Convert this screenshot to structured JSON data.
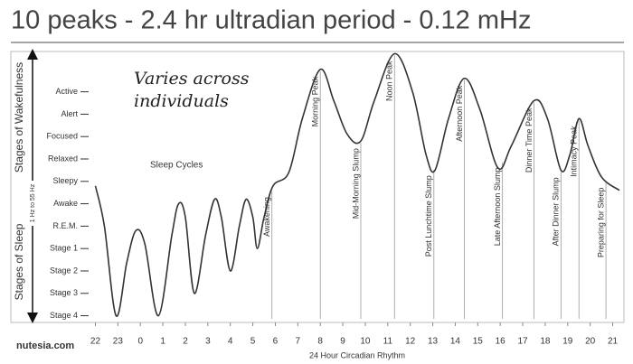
{
  "chart_data": {
    "type": "line",
    "title": "10 peaks - 2.4 hr ultradian period - 0.12 mHz",
    "note": [
      "Varies across",
      "individuals"
    ],
    "inner_label": "Sleep Cycles",
    "y_axis_labels": [
      "Stages of Wakefulness",
      "Stages of Sleep"
    ],
    "y_axis_sublabel": "1 Hz to 55 Hz",
    "xlabel": "24 Hour Circadian Rhythm",
    "source": "nutesia.com",
    "color": "#333333",
    "x": [
      0,
      0.4,
      0.92,
      1.4,
      1.8,
      2.2,
      2.8,
      3.4,
      3.7,
      4.0,
      4.4,
      4.9,
      5.3,
      5.6,
      6.0,
      6.4,
      6.7,
      7.0,
      7.2,
      7.5,
      7.9,
      8.6,
      9.2,
      10.0,
      10.6,
      11.2,
      11.8,
      12.4,
      13.3,
      14.1,
      14.7,
      15.1,
      15.7,
      16.4,
      17.1,
      17.9,
      18.5,
      19.5,
      20.1,
      20.7,
      21.1,
      21.5,
      21.9,
      22.5,
      23.3
    ],
    "values": [
      5.8,
      4.0,
      0,
      2.4,
      3.8,
      3.2,
      0,
      3.6,
      5.0,
      4.4,
      1.0,
      3.6,
      5.2,
      4.4,
      2.0,
      4.0,
      5.2,
      4.4,
      3.0,
      4.4,
      5.8,
      6.4,
      8.8,
      11.0,
      9.6,
      8.1,
      7.8,
      9.6,
      11.7,
      10.0,
      7.2,
      6.5,
      8.8,
      10.6,
      9.2,
      6.6,
      7.6,
      9.6,
      8.8,
      6.5,
      7.2,
      8.8,
      7.6,
      6.2,
      5.6
    ],
    "annotations": [
      {
        "text": "Awakening",
        "x": 7.85
      },
      {
        "text": "Morning Peak",
        "x": 10.0
      },
      {
        "text": "Mid-Morning Slump",
        "x": 11.8
      },
      {
        "text": "Noon Peak",
        "x": 13.3
      },
      {
        "text": "Post Lunchtime Slump",
        "x": 15.05
      },
      {
        "text": "Afternoon Peak",
        "x": 16.4
      },
      {
        "text": "Late Afternoon Slump",
        "x": 18.1
      },
      {
        "text": "Dinner Time Peak",
        "x": 19.5
      },
      {
        "text": "After Dinner Slump",
        "x": 20.7
      },
      {
        "text": "Intimacy Peak",
        "x": 21.5
      },
      {
        "text": "Preparing for Sleep",
        "x": 22.7
      }
    ],
    "xlim": [
      -0.1,
      23.3
    ],
    "xticks": [
      {
        "value": 0,
        "label": "22"
      },
      {
        "value": 1,
        "label": "23"
      },
      {
        "value": 2,
        "label": "0"
      },
      {
        "value": 3,
        "label": "1"
      },
      {
        "value": 4,
        "label": "2"
      },
      {
        "value": 5,
        "label": "3"
      },
      {
        "value": 6,
        "label": "4"
      },
      {
        "value": 7,
        "label": "5"
      },
      {
        "value": 8,
        "label": "6"
      },
      {
        "value": 9,
        "label": "7"
      },
      {
        "value": 10,
        "label": "8"
      },
      {
        "value": 11,
        "label": "9"
      },
      {
        "value": 12,
        "label": "10"
      },
      {
        "value": 13,
        "label": "11"
      },
      {
        "value": 14,
        "label": "12"
      },
      {
        "value": 15,
        "label": "13"
      },
      {
        "value": 16,
        "label": "14"
      },
      {
        "value": 17,
        "label": "15"
      },
      {
        "value": 18,
        "label": "16"
      },
      {
        "value": 19,
        "label": "17"
      },
      {
        "value": 20,
        "label": "18"
      },
      {
        "value": 21,
        "label": "19"
      },
      {
        "value": 22,
        "label": "20"
      },
      {
        "value": 23,
        "label": "21"
      }
    ],
    "ylim": [
      -0.3,
      11.8
    ],
    "yticks": [
      {
        "value": 0,
        "label": "Stage 4"
      },
      {
        "value": 1,
        "label": "Stage 3"
      },
      {
        "value": 2,
        "label": "Stage 2"
      },
      {
        "value": 3,
        "label": "Stage 1"
      },
      {
        "value": 4,
        "label": "R.E.M."
      },
      {
        "value": 5,
        "label": "Awake"
      },
      {
        "value": 6,
        "label": "Sleepy"
      },
      {
        "value": 7,
        "label": "Relaxed"
      },
      {
        "value": 8,
        "label": "Focused"
      },
      {
        "value": 9,
        "label": "Alert"
      },
      {
        "value": 10,
        "label": "Active"
      }
    ],
    "grid": false
  }
}
